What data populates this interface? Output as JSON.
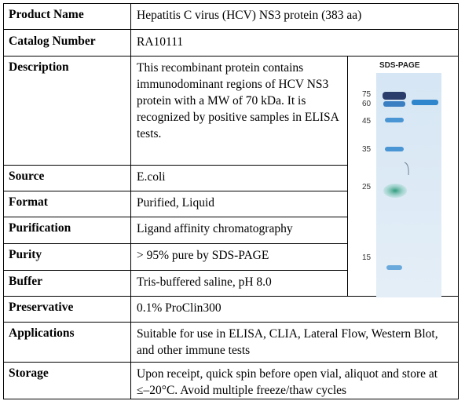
{
  "rows": [
    {
      "label": "Product Name",
      "value": "Hepatitis C virus (HCV) NS3 protein (383 aa)"
    },
    {
      "label": "Catalog Number",
      "value": "RA10111"
    },
    {
      "label": "Description",
      "value": "This recombinant protein contains immunodominant regions of HCV NS3 protein with a MW of 70 kDa. It is recognized by positive samples in ELISA tests."
    },
    {
      "label": "Source",
      "value": "E.coli"
    },
    {
      "label": "Format",
      "value": "Purified, Liquid"
    },
    {
      "label": "Purification",
      "value": "Ligand affinity chromatography"
    },
    {
      "label": "Purity",
      "value": "> 95% pure by SDS-PAGE"
    },
    {
      "label": "Buffer",
      "value": "Tris-buffered saline, pH 8.0"
    },
    {
      "label": "Preservative",
      "value": "0.1% ProClin300"
    },
    {
      "label": "Applications",
      "value": "Suitable for use in ELISA, CLIA, Lateral Flow, Western Blot, and other immune tests"
    },
    {
      "label": "Storage",
      "value": "Upon receipt, quick spin before open vial, aliquot and store at ≤–20°C. Avoid multiple freeze/thaw cycles"
    }
  ],
  "gel": {
    "title": "SDS-PAGE",
    "markers": [
      "75",
      "60",
      "45",
      "35",
      "25",
      "15"
    ],
    "colors": {
      "background": "#dbe9f5",
      "ladder": "#3a8fd0",
      "sample": "#2f86cc"
    }
  }
}
